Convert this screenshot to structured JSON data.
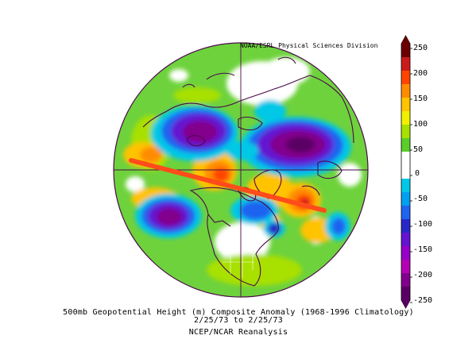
{
  "map": {
    "credit": "NOAA/ESRL Physical Sciences Division",
    "title_line1": "500mb Geopotential Height (m) Composite Anomaly (1968-1996 Climatology)",
    "title_line2": "2/25/73  to 2/25/73",
    "source": "NCEP/NCAR Reanalysis",
    "annotation": {
      "type": "hand-drawn line",
      "color": "#ff4c1a"
    }
  },
  "colorbar": {
    "labels": [
      "250",
      "200",
      "150",
      "100",
      "50",
      "0",
      "-50",
      "-100",
      "-150",
      "-200",
      "-250"
    ],
    "colors": [
      "#6b0000",
      "#cc1a1a",
      "#ff4500",
      "#ff8c00",
      "#ffc300",
      "#f0f000",
      "#a8e000",
      "#5acd2a",
      "#ffffff",
      "#ffffff",
      "#00c8e6",
      "#00a0f0",
      "#1e64f0",
      "#2828c8",
      "#6414d2",
      "#9600c8",
      "#b400b4",
      "#82008c",
      "#5a0064"
    ]
  }
}
